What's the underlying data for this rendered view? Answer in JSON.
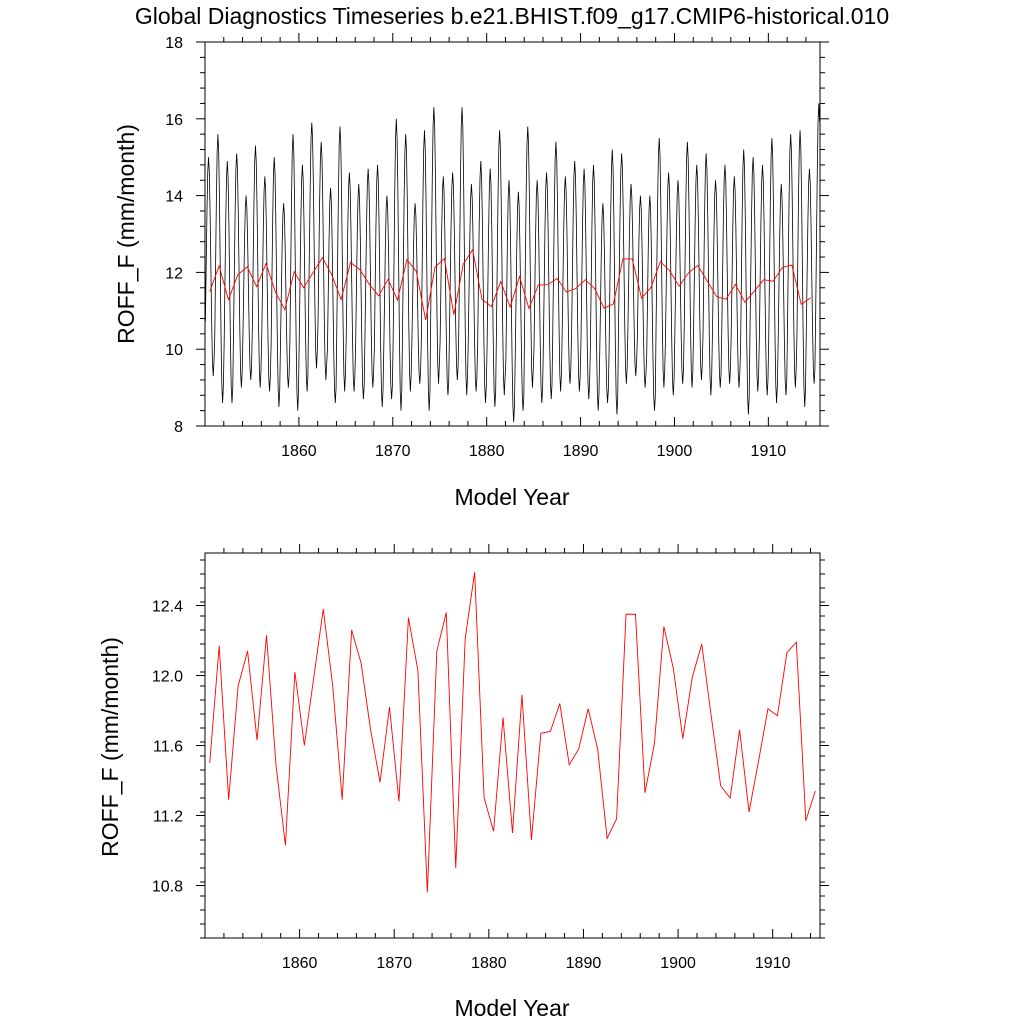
{
  "title": "Global Diagnostics Timeseries b.e21.BHIST.f09_g17.CMIP6-historical.010",
  "chart_data": [
    {
      "type": "line",
      "title": "Global Diagnostics Timeseries b.e21.BHIST.f09_g17.CMIP6-historical.010",
      "xlabel": "Model Year",
      "ylabel": "ROFF_F (mm/month)",
      "xlim": [
        1850,
        1915.5
      ],
      "ylim": [
        8,
        18
      ],
      "xticks": [
        "1860",
        "1870",
        "1880",
        "1890",
        "1900",
        "1910"
      ],
      "yticks": [
        "8",
        "10",
        "12",
        "14",
        "16",
        "18"
      ],
      "monthly_max": [
        15.0,
        15.6,
        14.9,
        15.1,
        14.0,
        15.3,
        14.5,
        15.0,
        13.8,
        15.6,
        14.8,
        15.9,
        15.4,
        14.2,
        15.8,
        14.6,
        14.3,
        14.7,
        14.8,
        14.0,
        16.0,
        15.6,
        13.8,
        15.7,
        16.3,
        14.5,
        14.6,
        16.3,
        14.3,
        14.9,
        14.7,
        15.7,
        14.4,
        14.1,
        15.8,
        14.4,
        14.6,
        15.4,
        14.5,
        14.9,
        14.7,
        14.8,
        13.8,
        15.2,
        15.1,
        14.3,
        14.0,
        14.0,
        15.5,
        14.6,
        14.4,
        15.4,
        14.8,
        15.1,
        14.4,
        14.8,
        14.5,
        15.2,
        15.0,
        14.8,
        15.5,
        14.3,
        15.6,
        15.7,
        14.7,
        16.4
      ],
      "monthly_min": [
        9.3,
        8.6,
        8.6,
        9.0,
        9.2,
        9.0,
        8.9,
        8.5,
        9.0,
        8.4,
        8.9,
        9.5,
        9.2,
        8.6,
        8.9,
        8.9,
        8.7,
        9.0,
        8.5,
        8.7,
        8.4,
        8.9,
        9.1,
        8.4,
        9.1,
        8.8,
        9.2,
        8.8,
        8.9,
        8.6,
        8.5,
        8.8,
        8.1,
        8.4,
        9.0,
        8.6,
        8.7,
        8.9,
        9.1,
        8.9,
        8.7,
        8.4,
        8.6,
        8.3,
        9.1,
        9.3,
        9.0,
        8.4,
        9.0,
        8.8,
        9.1,
        9.0,
        9.2,
        8.8,
        9.0,
        9.1,
        9.0,
        8.3,
        8.9,
        8.8,
        8.6,
        8.8,
        9.0,
        8.5,
        9.1,
        9.2
      ],
      "series": [
        {
          "color": "#000000",
          "style": "monthly"
        },
        {
          "color": "#ff0000",
          "style": "annual"
        }
      ]
    },
    {
      "type": "line",
      "xlabel": "Model Year",
      "ylabel": "ROFF_F (mm/month)",
      "xlim": [
        1850,
        1915
      ],
      "ylim": [
        10.5,
        12.7
      ],
      "xticks": [
        "1860",
        "1870",
        "1880",
        "1890",
        "1900",
        "1910"
      ],
      "yticks": [
        "10.8",
        "11.2",
        "11.6",
        "12.0",
        "12.4"
      ],
      "x_start": 1850.5,
      "annual_mean": [
        11.5,
        12.17,
        11.29,
        11.94,
        12.14,
        11.63,
        12.23,
        11.49,
        11.03,
        12.02,
        11.6,
        11.99,
        12.38,
        11.94,
        11.29,
        12.26,
        12.07,
        11.69,
        11.39,
        11.82,
        11.28,
        12.33,
        12.03,
        10.76,
        12.14,
        12.36,
        10.9,
        12.21,
        12.59,
        11.3,
        11.11,
        11.76,
        11.1,
        11.89,
        11.06,
        11.67,
        11.68,
        11.84,
        11.49,
        11.58,
        11.81,
        11.58,
        11.07,
        11.18,
        12.35,
        12.35,
        11.33,
        11.61,
        12.28,
        12.04,
        11.64,
        11.99,
        12.18,
        11.77,
        11.37,
        11.3,
        11.69,
        11.22,
        11.51,
        11.81,
        11.77,
        12.13,
        12.19,
        11.17,
        11.34
      ],
      "series": [
        {
          "color": "#ff0000",
          "style": "annual"
        }
      ]
    }
  ]
}
